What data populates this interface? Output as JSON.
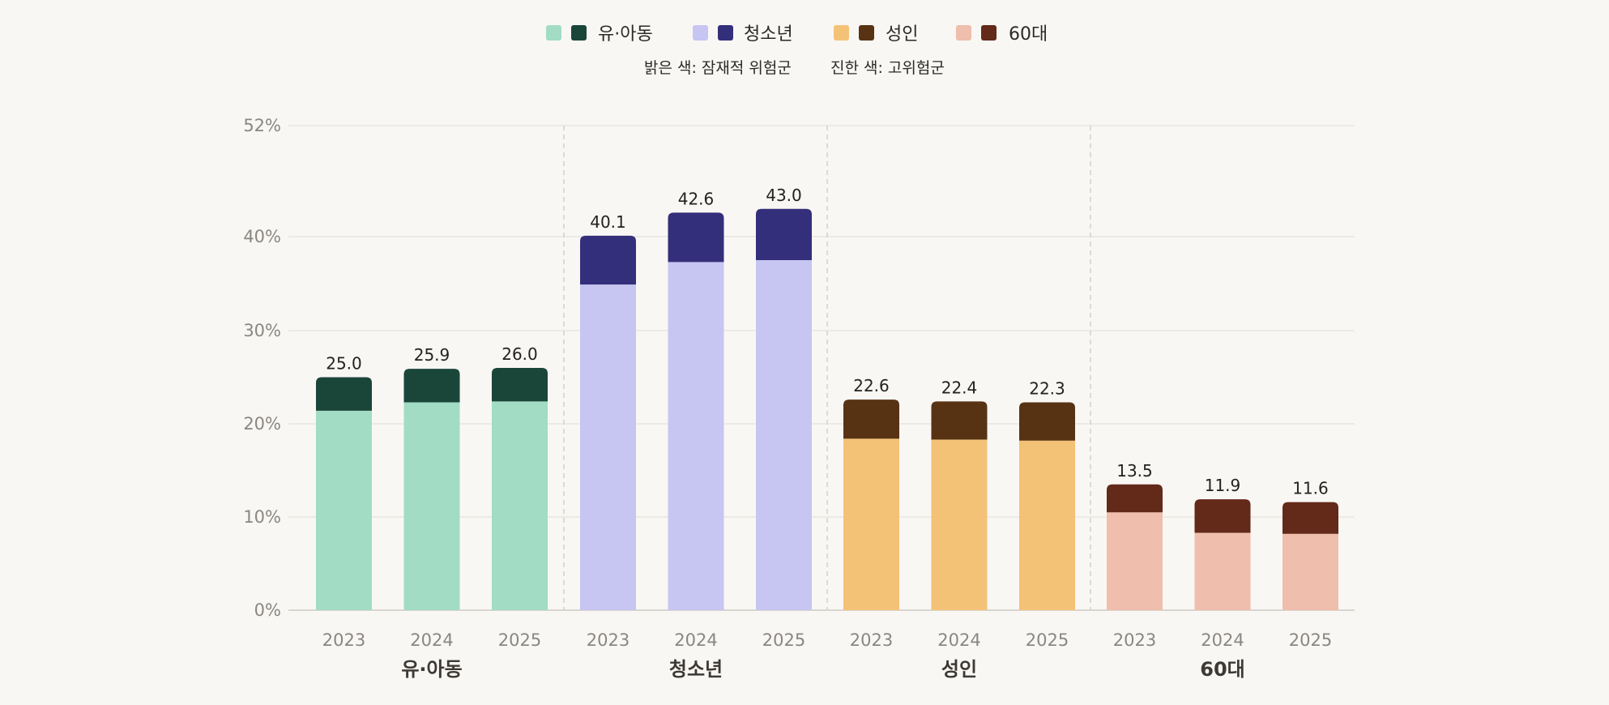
{
  "chart_data": {
    "type": "bar",
    "stacked": true,
    "y_ticks": [
      0,
      10,
      20,
      30,
      40,
      52
    ],
    "y_tick_labels": [
      "0%",
      "10%",
      "20%",
      "30%",
      "40%",
      "52%"
    ],
    "ylim": [
      0,
      52
    ],
    "legend_note_light": "밝은 색: 잠재적 위험군",
    "legend_note_dark": "진한 색: 고위험군",
    "groups": [
      {
        "name": "유·아동",
        "light_color": "#a2dcc5",
        "dark_color": "#1a463a",
        "bars": [
          {
            "year": "2023",
            "light": 21.4,
            "dark": 3.6,
            "total": "25.0"
          },
          {
            "year": "2024",
            "light": 22.3,
            "dark": 3.6,
            "total": "25.9"
          },
          {
            "year": "2025",
            "light": 22.4,
            "dark": 3.6,
            "total": "26.0"
          }
        ]
      },
      {
        "name": "청소년",
        "light_color": "#c7c5f2",
        "dark_color": "#342f7a",
        "bars": [
          {
            "year": "2023",
            "light": 34.9,
            "dark": 5.2,
            "total": "40.1"
          },
          {
            "year": "2024",
            "light": 37.3,
            "dark": 5.3,
            "total": "42.6"
          },
          {
            "year": "2025",
            "light": 37.5,
            "dark": 5.5,
            "total": "43.0"
          }
        ]
      },
      {
        "name": "성인",
        "light_color": "#f4c276",
        "dark_color": "#573314",
        "bars": [
          {
            "year": "2023",
            "light": 18.4,
            "dark": 4.2,
            "total": "22.6"
          },
          {
            "year": "2024",
            "light": 18.3,
            "dark": 4.1,
            "total": "22.4"
          },
          {
            "year": "2025",
            "light": 18.2,
            "dark": 4.1,
            "total": "22.3"
          }
        ]
      },
      {
        "name": "60대",
        "light_color": "#efbeac",
        "dark_color": "#632919",
        "bars": [
          {
            "year": "2023",
            "light": 10.5,
            "dark": 3.0,
            "total": "13.5"
          },
          {
            "year": "2024",
            "light": 8.3,
            "dark": 3.6,
            "total": "11.9"
          },
          {
            "year": "2025",
            "light": 8.2,
            "dark": 3.4,
            "total": "11.6"
          }
        ]
      }
    ]
  }
}
